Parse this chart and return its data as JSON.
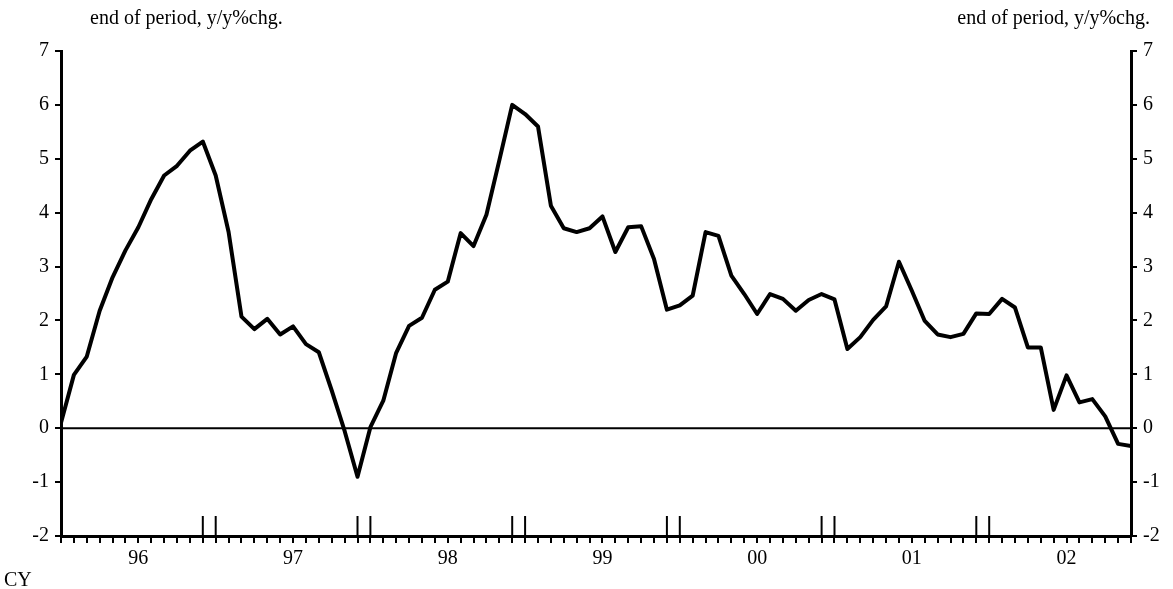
{
  "chart_data": {
    "type": "line",
    "ylabel": "end of period, y/y%chg.",
    "y2label": "end of period, y/y%chg.",
    "xlabel": "CY",
    "x": [
      "1996-01",
      "1996-02",
      "1996-03",
      "1996-04",
      "1996-05",
      "1996-06",
      "1996-07",
      "1996-08",
      "1996-09",
      "1996-10",
      "1996-11",
      "1996-12",
      "1997-01",
      "1997-02",
      "1997-03",
      "1997-04",
      "1997-05",
      "1997-06",
      "1997-07",
      "1997-08",
      "1997-09",
      "1997-10",
      "1997-11",
      "1997-12",
      "1998-01",
      "1998-02",
      "1998-03",
      "1998-04",
      "1998-05",
      "1998-06",
      "1998-07",
      "1998-08",
      "1998-09",
      "1998-10",
      "1998-11",
      "1998-12",
      "1999-01",
      "1999-02",
      "1999-03",
      "1999-04",
      "1999-05",
      "1999-06",
      "1999-07",
      "1999-08",
      "1999-09",
      "1999-10",
      "1999-11",
      "1999-12",
      "2000-01",
      "2000-02",
      "2000-03",
      "2000-04",
      "2000-05",
      "2000-06",
      "2000-07",
      "2000-08",
      "2000-09",
      "2000-10",
      "2000-11",
      "2000-12",
      "2001-01",
      "2001-02",
      "2001-03",
      "2001-04",
      "2001-05",
      "2001-06",
      "2001-07",
      "2001-08",
      "2001-09",
      "2001-10",
      "2001-11",
      "2001-12",
      "2002-01",
      "2002-02",
      "2002-03",
      "2002-04",
      "2002-05",
      "2002-06",
      "2002-07",
      "2002-08",
      "2002-09",
      "2002-10",
      "2002-11",
      "2002-12"
    ],
    "series": [
      {
        "color": "#000000",
        "values": [
          0.1,
          0.99,
          1.33,
          2.18,
          2.8,
          3.3,
          3.73,
          4.25,
          4.69,
          4.87,
          5.15,
          5.32,
          4.69,
          3.64,
          2.07,
          1.84,
          2.03,
          1.74,
          1.89,
          1.56,
          1.41,
          0.7,
          -0.05,
          -0.9,
          0.02,
          0.51,
          1.4,
          1.9,
          2.05,
          2.57,
          2.72,
          3.62,
          3.38,
          3.96,
          4.97,
          6.0,
          5.83,
          5.6,
          4.13,
          3.71,
          3.64,
          3.71,
          3.93,
          3.27,
          3.73,
          3.75,
          3.14,
          2.2,
          2.28,
          2.46,
          3.64,
          3.57,
          2.83,
          2.49,
          2.12,
          2.49,
          2.4,
          2.18,
          2.38,
          2.49,
          2.39,
          1.47,
          1.69,
          2.01,
          2.26,
          3.09,
          2.55,
          1.99,
          1.74,
          1.69,
          1.75,
          2.13,
          2.12,
          2.4,
          2.24,
          1.5,
          1.5,
          0.34,
          0.98,
          0.48,
          0.54,
          0.22,
          -0.29,
          -0.33
        ]
      }
    ],
    "xlim": [
      "1996-01",
      "2002-12"
    ],
    "xticks": [
      {
        "value": "1996-01",
        "label": null
      },
      {
        "value": "1996-02",
        "label": null
      },
      {
        "value": "1996-03",
        "label": null
      },
      {
        "value": "1996-04",
        "label": null
      },
      {
        "value": "1996-05",
        "label": null
      },
      {
        "value": "1996-06",
        "label": null
      },
      {
        "value": "1996-07",
        "label": "96"
      },
      {
        "value": "1996-08",
        "label": null
      },
      {
        "value": "1996-09",
        "label": null
      },
      {
        "value": "1996-10",
        "label": null
      },
      {
        "value": "1996-11",
        "label": null
      },
      {
        "value": "1996-12",
        "label": null
      },
      {
        "value": "1997-01",
        "label": null
      },
      {
        "value": "1997-02",
        "label": null
      },
      {
        "value": "1997-03",
        "label": null
      },
      {
        "value": "1997-04",
        "label": null
      },
      {
        "value": "1997-05",
        "label": null
      },
      {
        "value": "1997-06",
        "label": null
      },
      {
        "value": "1997-07",
        "label": "97"
      },
      {
        "value": "1997-08",
        "label": null
      },
      {
        "value": "1997-09",
        "label": null
      },
      {
        "value": "1997-10",
        "label": null
      },
      {
        "value": "1997-11",
        "label": null
      },
      {
        "value": "1997-12",
        "label": null
      },
      {
        "value": "1998-01",
        "label": null
      },
      {
        "value": "1998-02",
        "label": null
      },
      {
        "value": "1998-03",
        "label": null
      },
      {
        "value": "1998-04",
        "label": null
      },
      {
        "value": "1998-05",
        "label": null
      },
      {
        "value": "1998-06",
        "label": null
      },
      {
        "value": "1998-07",
        "label": "98"
      },
      {
        "value": "1998-08",
        "label": null
      },
      {
        "value": "1998-09",
        "label": null
      },
      {
        "value": "1998-10",
        "label": null
      },
      {
        "value": "1998-11",
        "label": null
      },
      {
        "value": "1998-12",
        "label": null
      },
      {
        "value": "1999-01",
        "label": null
      },
      {
        "value": "1999-02",
        "label": null
      },
      {
        "value": "1999-03",
        "label": null
      },
      {
        "value": "1999-04",
        "label": null
      },
      {
        "value": "1999-05",
        "label": null
      },
      {
        "value": "1999-06",
        "label": null
      },
      {
        "value": "1999-07",
        "label": "99"
      },
      {
        "value": "1999-08",
        "label": null
      },
      {
        "value": "1999-09",
        "label": null
      },
      {
        "value": "1999-10",
        "label": null
      },
      {
        "value": "1999-11",
        "label": null
      },
      {
        "value": "1999-12",
        "label": null
      },
      {
        "value": "2000-01",
        "label": null
      },
      {
        "value": "2000-02",
        "label": null
      },
      {
        "value": "2000-03",
        "label": null
      },
      {
        "value": "2000-04",
        "label": null
      },
      {
        "value": "2000-05",
        "label": null
      },
      {
        "value": "2000-06",
        "label": null
      },
      {
        "value": "2000-07",
        "label": "00"
      },
      {
        "value": "2000-08",
        "label": null
      },
      {
        "value": "2000-09",
        "label": null
      },
      {
        "value": "2000-10",
        "label": null
      },
      {
        "value": "2000-11",
        "label": null
      },
      {
        "value": "2000-12",
        "label": null
      },
      {
        "value": "2001-01",
        "label": null
      },
      {
        "value": "2001-02",
        "label": null
      },
      {
        "value": "2001-03",
        "label": null
      },
      {
        "value": "2001-04",
        "label": null
      },
      {
        "value": "2001-05",
        "label": null
      },
      {
        "value": "2001-06",
        "label": null
      },
      {
        "value": "2001-07",
        "label": "01"
      },
      {
        "value": "2001-08",
        "label": null
      },
      {
        "value": "2001-09",
        "label": null
      },
      {
        "value": "2001-10",
        "label": null
      },
      {
        "value": "2001-11",
        "label": null
      },
      {
        "value": "2001-12",
        "label": null
      },
      {
        "value": "2002-01",
        "label": null
      },
      {
        "value": "2002-02",
        "label": null
      },
      {
        "value": "2002-03",
        "label": null
      },
      {
        "value": "2002-04",
        "label": null
      },
      {
        "value": "2002-05",
        "label": null
      },
      {
        "value": "2002-06",
        "label": null
      },
      {
        "value": "2002-07",
        "label": "02"
      },
      {
        "value": "2002-08",
        "label": null
      },
      {
        "value": "2002-09",
        "label": null
      },
      {
        "value": "2002-10",
        "label": null
      },
      {
        "value": "2002-11",
        "label": null
      },
      {
        "value": "2002-12",
        "label": null
      }
    ],
    "ylim": [
      -2,
      7
    ],
    "yticks": [
      -2,
      -1,
      0,
      1,
      2,
      3,
      4,
      5,
      6,
      7
    ],
    "y2lim": [
      -2,
      7
    ],
    "y2ticks": [
      -2,
      -1,
      0,
      1,
      2,
      3,
      4,
      5,
      6,
      7
    ],
    "ref_lines": [
      {
        "axis": "y",
        "value": 0,
        "color": "#000000"
      }
    ],
    "grid": false,
    "legend": false,
    "marker": "none",
    "line_style": "solid"
  }
}
